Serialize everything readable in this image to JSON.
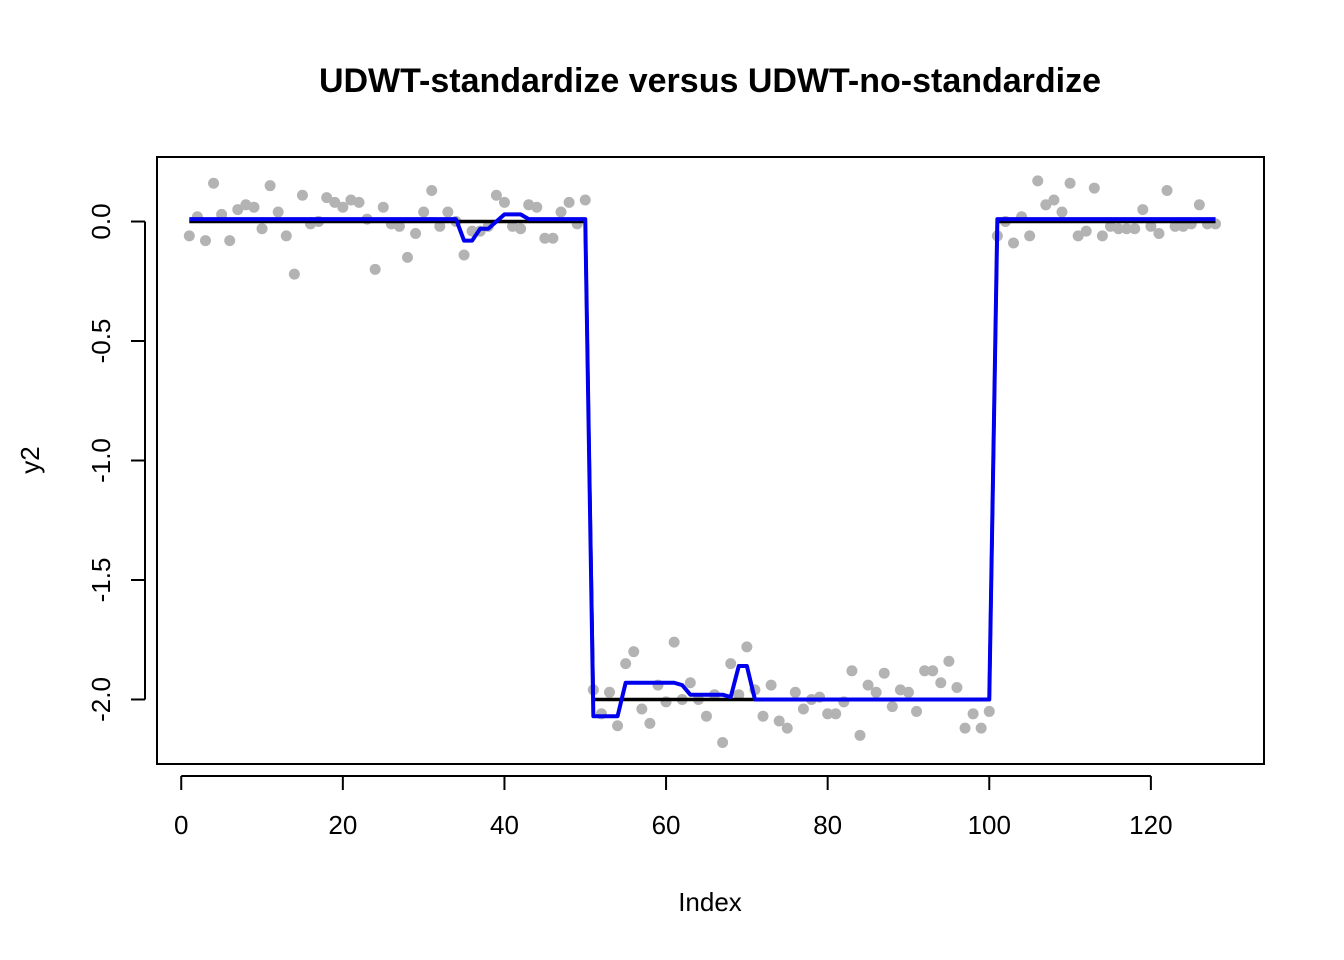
{
  "chart_data": {
    "type": "scatter",
    "title": "UDWT-standardize versus UDWT-no-standardize",
    "xlabel": "Index",
    "ylabel": "y2",
    "xlim": [
      -3,
      134
    ],
    "ylim": [
      -2.27,
      0.27
    ],
    "xticks": [
      0,
      20,
      40,
      60,
      80,
      100,
      120
    ],
    "yticks": [
      0.0,
      -0.5,
      -1.0,
      -1.5,
      -2.0
    ],
    "xtick_labels": [
      "0",
      "20",
      "40",
      "60",
      "80",
      "100",
      "120"
    ],
    "ytick_labels": [
      "0.0",
      "-0.5",
      "-1.0",
      "-1.5",
      "-2.0"
    ],
    "grid": false,
    "legend": "none",
    "colors": {
      "points": "#b3b3b3",
      "truth": "#000000",
      "estimate": "#0000ee"
    },
    "series": [
      {
        "kind": "points",
        "x": [
          1,
          2,
          3,
          4,
          5,
          6,
          7,
          8,
          9,
          10,
          11,
          12,
          13,
          14,
          15,
          16,
          17,
          18,
          19,
          20,
          21,
          22,
          23,
          24,
          25,
          26,
          27,
          28,
          29,
          30,
          31,
          32,
          33,
          34,
          35,
          36,
          37,
          38,
          39,
          40,
          41,
          42,
          43,
          44,
          45,
          46,
          47,
          48,
          49,
          50,
          51,
          52,
          53,
          54,
          55,
          56,
          57,
          58,
          59,
          60,
          61,
          62,
          63,
          64,
          65,
          66,
          67,
          68,
          69,
          70,
          71,
          72,
          73,
          74,
          75,
          76,
          77,
          78,
          79,
          80,
          81,
          82,
          83,
          84,
          85,
          86,
          87,
          88,
          89,
          90,
          91,
          92,
          93,
          94,
          95,
          96,
          97,
          98,
          99,
          100,
          101,
          102,
          103,
          104,
          105,
          106,
          107,
          108,
          109,
          110,
          111,
          112,
          113,
          114,
          115,
          116,
          117,
          118,
          119,
          120,
          121,
          122,
          123,
          124,
          125,
          126,
          127,
          128
        ],
        "y": [
          -0.06,
          0.02,
          -0.08,
          0.16,
          0.03,
          -0.08,
          0.05,
          0.07,
          0.06,
          -0.03,
          0.15,
          0.04,
          -0.06,
          -0.22,
          0.11,
          -0.01,
          0.0,
          0.1,
          0.08,
          0.06,
          0.09,
          0.08,
          0.01,
          -0.2,
          0.06,
          -0.01,
          -0.02,
          -0.15,
          -0.05,
          0.04,
          0.13,
          -0.02,
          0.04,
          0.0,
          -0.14,
          -0.04,
          -0.04,
          -0.02,
          0.11,
          0.08,
          -0.02,
          -0.03,
          0.07,
          0.06,
          -0.07,
          -0.07,
          0.04,
          0.08,
          -0.01,
          0.09,
          -1.96,
          -2.06,
          -1.97,
          -2.11,
          -1.85,
          -1.8,
          -2.04,
          -2.1,
          -1.94,
          -2.01,
          -1.76,
          -2.0,
          -1.93,
          -2.0,
          -2.07,
          -1.98,
          -2.18,
          -1.85,
          -1.98,
          -1.78,
          -1.96,
          -2.07,
          -1.94,
          -2.09,
          -2.12,
          -1.97,
          -2.04,
          -2.0,
          -1.99,
          -2.06,
          -2.06,
          -2.01,
          -1.88,
          -2.15,
          -1.94,
          -1.97,
          -1.89,
          -2.03,
          -1.96,
          -1.97,
          -2.05,
          -1.88,
          -1.88,
          -1.93,
          -1.84,
          -1.95,
          -2.12,
          -2.06,
          -2.12,
          -2.05,
          -0.06,
          0.0,
          -0.09,
          0.02,
          -0.06,
          0.17,
          0.07,
          0.09,
          0.04,
          0.16,
          -0.06,
          -0.04,
          0.14,
          -0.06,
          -0.02,
          -0.03,
          -0.03,
          -0.03,
          0.05,
          -0.02,
          -0.05,
          0.13,
          -0.02,
          -0.02,
          -0.01,
          0.07,
          -0.01,
          -0.01
        ]
      },
      {
        "kind": "line",
        "name": "truth",
        "x": [
          1,
          50,
          51,
          100,
          101,
          128
        ],
        "y": [
          0,
          0,
          -2,
          -2,
          0,
          0
        ]
      },
      {
        "kind": "line",
        "name": "estimate",
        "x": [
          1,
          34,
          35,
          36,
          37,
          38,
          39,
          40,
          42,
          43,
          50,
          51,
          53,
          54,
          55,
          61,
          62,
          63,
          67,
          68,
          69,
          70,
          71,
          100,
          101,
          128
        ],
        "y": [
          0.01,
          0.01,
          -0.08,
          -0.08,
          -0.03,
          -0.03,
          0.0,
          0.03,
          0.03,
          0.01,
          0.01,
          -2.07,
          -2.07,
          -2.07,
          -1.93,
          -1.93,
          -1.94,
          -1.98,
          -1.98,
          -1.99,
          -1.86,
          -1.86,
          -2.0,
          -2.0,
          0.01,
          0.01
        ]
      }
    ]
  }
}
